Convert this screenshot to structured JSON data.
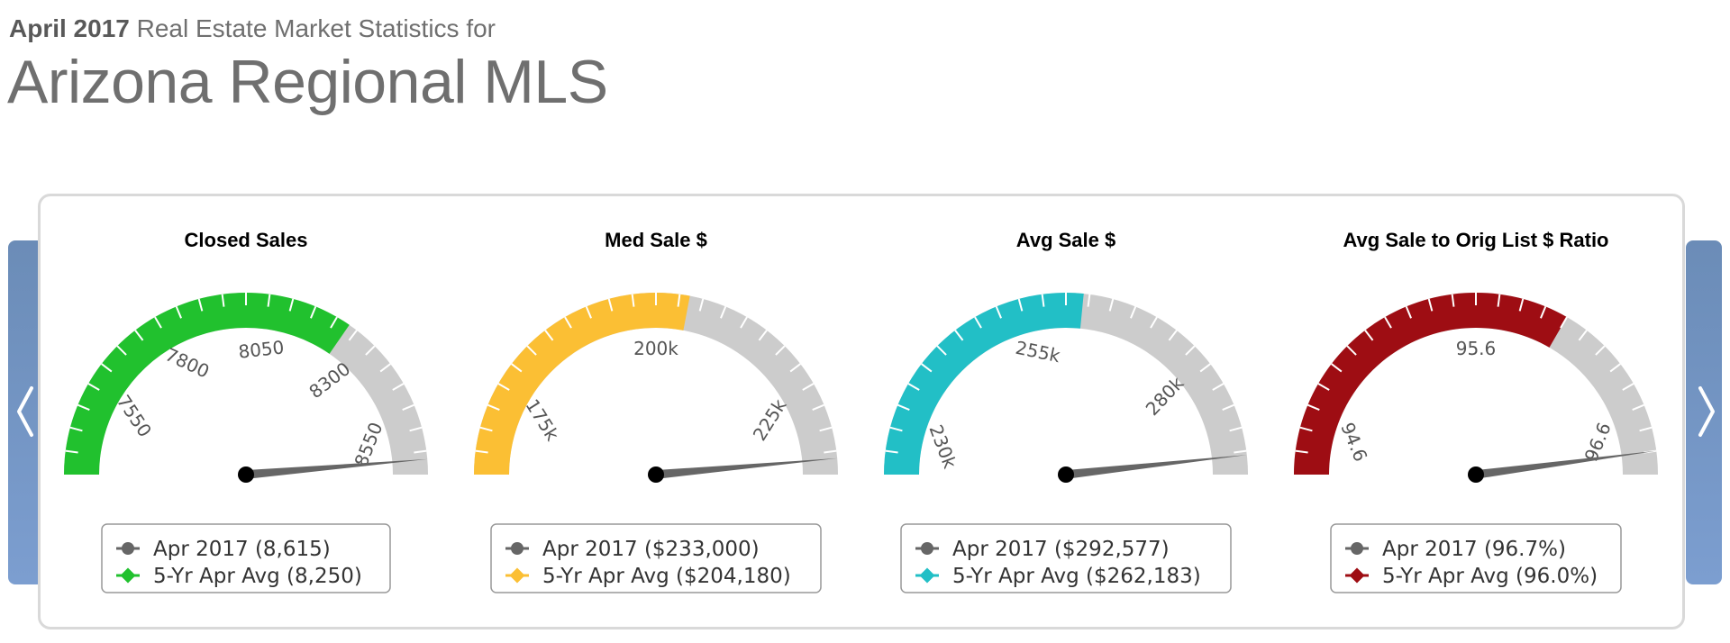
{
  "header": {
    "month_label": "April 2017",
    "subtitle_rest": "Real Estate Market Statistics for",
    "title": "Arizona Regional MLS"
  },
  "navigation": {
    "prev_icon": "chevron-left-icon",
    "next_icon": "chevron-right-icon"
  },
  "chart_data": [
    {
      "type": "gauge",
      "title": "Closed Sales",
      "min": 7350,
      "max": 8650,
      "tick_labels": [
        {
          "value": 7550,
          "text": "7550"
        },
        {
          "value": 7800,
          "text": "7800"
        },
        {
          "value": 8050,
          "text": "8050"
        },
        {
          "value": 8300,
          "text": "8300"
        },
        {
          "value": 8550,
          "text": "8550"
        }
      ],
      "band_value": 8250,
      "needle_value": 8615,
      "band_color": "#21c12e",
      "track_color": "#cccccc",
      "needle_color": "#666666",
      "legend": [
        {
          "label": "Apr 2017 (8,615)",
          "color": "#666666"
        },
        {
          "label": "5-Yr Apr Avg (8,250)",
          "color": "#21c12e"
        }
      ]
    },
    {
      "type": "gauge",
      "title": "Med Sale $",
      "min": 165000,
      "max": 235000,
      "tick_labels": [
        {
          "value": 175000,
          "text": "175k"
        },
        {
          "value": 200000,
          "text": "200k"
        },
        {
          "value": 225000,
          "text": "225k"
        }
      ],
      "band_value": 204180,
      "needle_value": 233000,
      "band_color": "#fbbf34",
      "track_color": "#cccccc",
      "needle_color": "#666666",
      "legend": [
        {
          "label": "Apr 2017 ($233,000)",
          "color": "#666666"
        },
        {
          "label": "5-Yr Apr Avg ($204,180)",
          "color": "#fbbf34"
        }
      ]
    },
    {
      "type": "gauge",
      "title": "Avg Sale $",
      "min": 225000,
      "max": 295000,
      "tick_labels": [
        {
          "value": 230000,
          "text": "230k"
        },
        {
          "value": 255000,
          "text": "255k"
        },
        {
          "value": 280000,
          "text": "280k"
        }
      ],
      "band_value": 262183,
      "needle_value": 292577,
      "band_color": "#22bfc6",
      "track_color": "#cccccc",
      "needle_color": "#666666",
      "legend": [
        {
          "label": "Apr 2017 ($292,577)",
          "color": "#666666"
        },
        {
          "label": "5-Yr Apr Avg ($262,183)",
          "color": "#22bfc6"
        }
      ]
    },
    {
      "type": "gauge",
      "title": "Avg Sale to Orig List $ Ratio",
      "min": 94.4,
      "max": 96.8,
      "tick_labels": [
        {
          "value": 94.6,
          "text": "94.6"
        },
        {
          "value": 95.6,
          "text": "95.6"
        },
        {
          "value": 96.6,
          "text": "96.6"
        }
      ],
      "band_value": 96.0,
      "needle_value": 96.7,
      "band_color": "#9e0d13",
      "track_color": "#cccccc",
      "needle_color": "#666666",
      "legend": [
        {
          "label": "Apr 2017 (96.7%)",
          "color": "#666666"
        },
        {
          "label": "5-Yr Apr Avg (96.0%)",
          "color": "#9e0d13"
        }
      ]
    }
  ]
}
